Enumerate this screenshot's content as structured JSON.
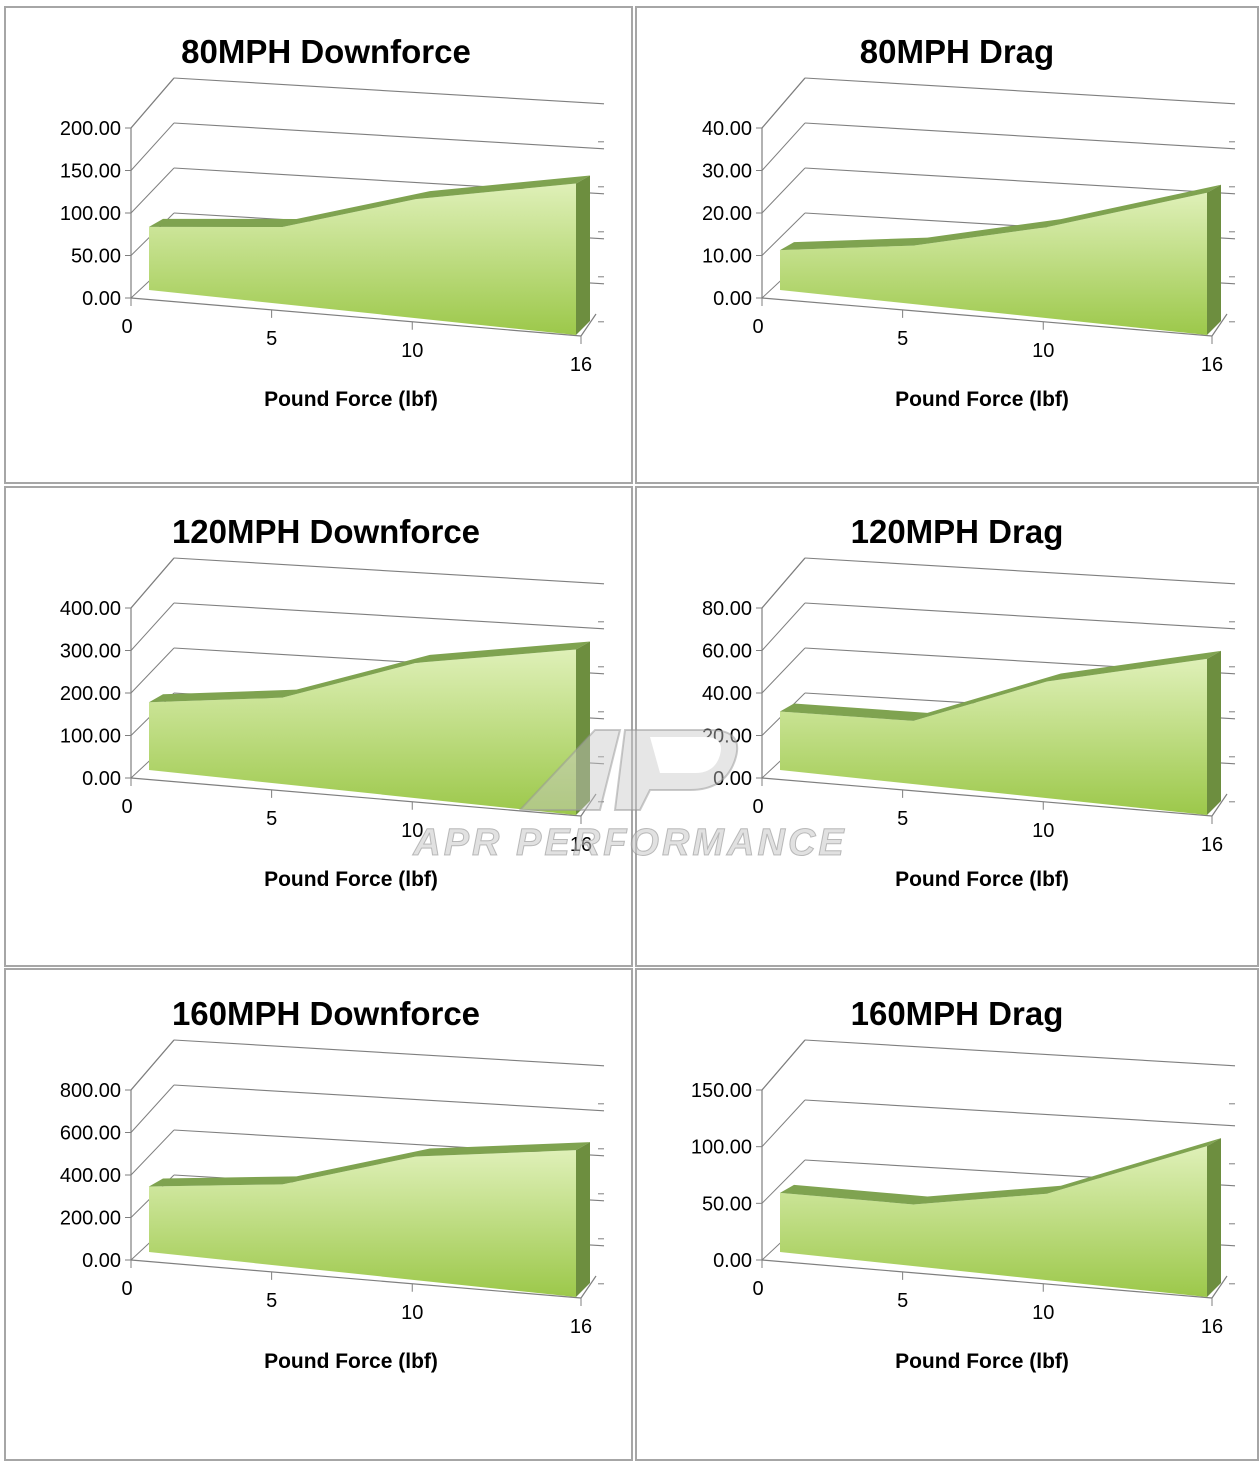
{
  "chart_data": [
    {
      "type": "area",
      "title": "80MPH Downforce",
      "xlabel": "Pound Force (lbf)",
      "x_ticks": [
        "0",
        "5",
        "10",
        "16"
      ],
      "y_ticks": [
        "200.00",
        "150.00",
        "100.00",
        "50.00",
        "0.00"
      ],
      "ylim": [
        0,
        200
      ],
      "x": [
        0,
        5,
        10,
        16
      ],
      "values": [
        55,
        70,
        115,
        150
      ]
    },
    {
      "type": "area",
      "title": "80MPH Drag",
      "xlabel": "Pound Force (lbf)",
      "x_ticks": [
        "0",
        "5",
        "10",
        "16"
      ],
      "y_ticks": [
        "40.00",
        "30.00",
        "20.00",
        "10.00",
        "0.00"
      ],
      "ylim": [
        0,
        40
      ],
      "x": [
        0,
        5,
        10,
        16
      ],
      "values": [
        6,
        10,
        17,
        28
      ]
    },
    {
      "type": "area",
      "title": "120MPH Downforce",
      "xlabel": "Pound Force (lbf)",
      "x_ticks": [
        "0",
        "5",
        "10",
        "16"
      ],
      "y_ticks": [
        "400.00",
        "300.00",
        "200.00",
        "100.00",
        "0.00"
      ],
      "ylim": [
        0,
        400
      ],
      "x": [
        0,
        5,
        10,
        16
      ],
      "values": [
        120,
        160,
        265,
        330
      ]
    },
    {
      "type": "area",
      "title": "120MPH Drag",
      "xlabel": "Pound Force (lbf)",
      "x_ticks": [
        "0",
        "5",
        "10",
        "16"
      ],
      "y_ticks": [
        "80.00",
        "60.00",
        "40.00",
        "20.00",
        "0.00"
      ],
      "ylim": [
        0,
        80
      ],
      "x": [
        0,
        5,
        10,
        16
      ],
      "values": [
        20,
        22,
        45,
        62
      ]
    },
    {
      "type": "area",
      "title": "160MPH Downforce",
      "xlabel": "Pound Force (lbf)",
      "x_ticks": [
        "0",
        "5",
        "10",
        "16"
      ],
      "y_ticks": [
        "800.00",
        "600.00",
        "400.00",
        "200.00",
        "0.00"
      ],
      "ylim": [
        0,
        800
      ],
      "x": [
        0,
        5,
        10,
        16
      ],
      "values": [
        230,
        300,
        480,
        580
      ]
    },
    {
      "type": "area",
      "title": "160MPH Drag",
      "xlabel": "Pound Force (lbf)",
      "x_ticks": [
        "0",
        "5",
        "10",
        "16"
      ],
      "y_ticks": [
        "150.00",
        "100.00",
        "50.00",
        "0.00"
      ],
      "ylim": [
        0,
        150
      ],
      "x": [
        0,
        5,
        10,
        16
      ],
      "values": [
        38,
        40,
        60,
        112
      ]
    }
  ],
  "watermark": {
    "text": "APR PERFORMANCE"
  },
  "colors": {
    "area_top": "#dff0b8",
    "area_bottom": "#9cc84a",
    "ridge": "#7fa350",
    "side": "#6d8e3f",
    "gridline": "#7f7f7f",
    "border": "#a6a6a6"
  }
}
